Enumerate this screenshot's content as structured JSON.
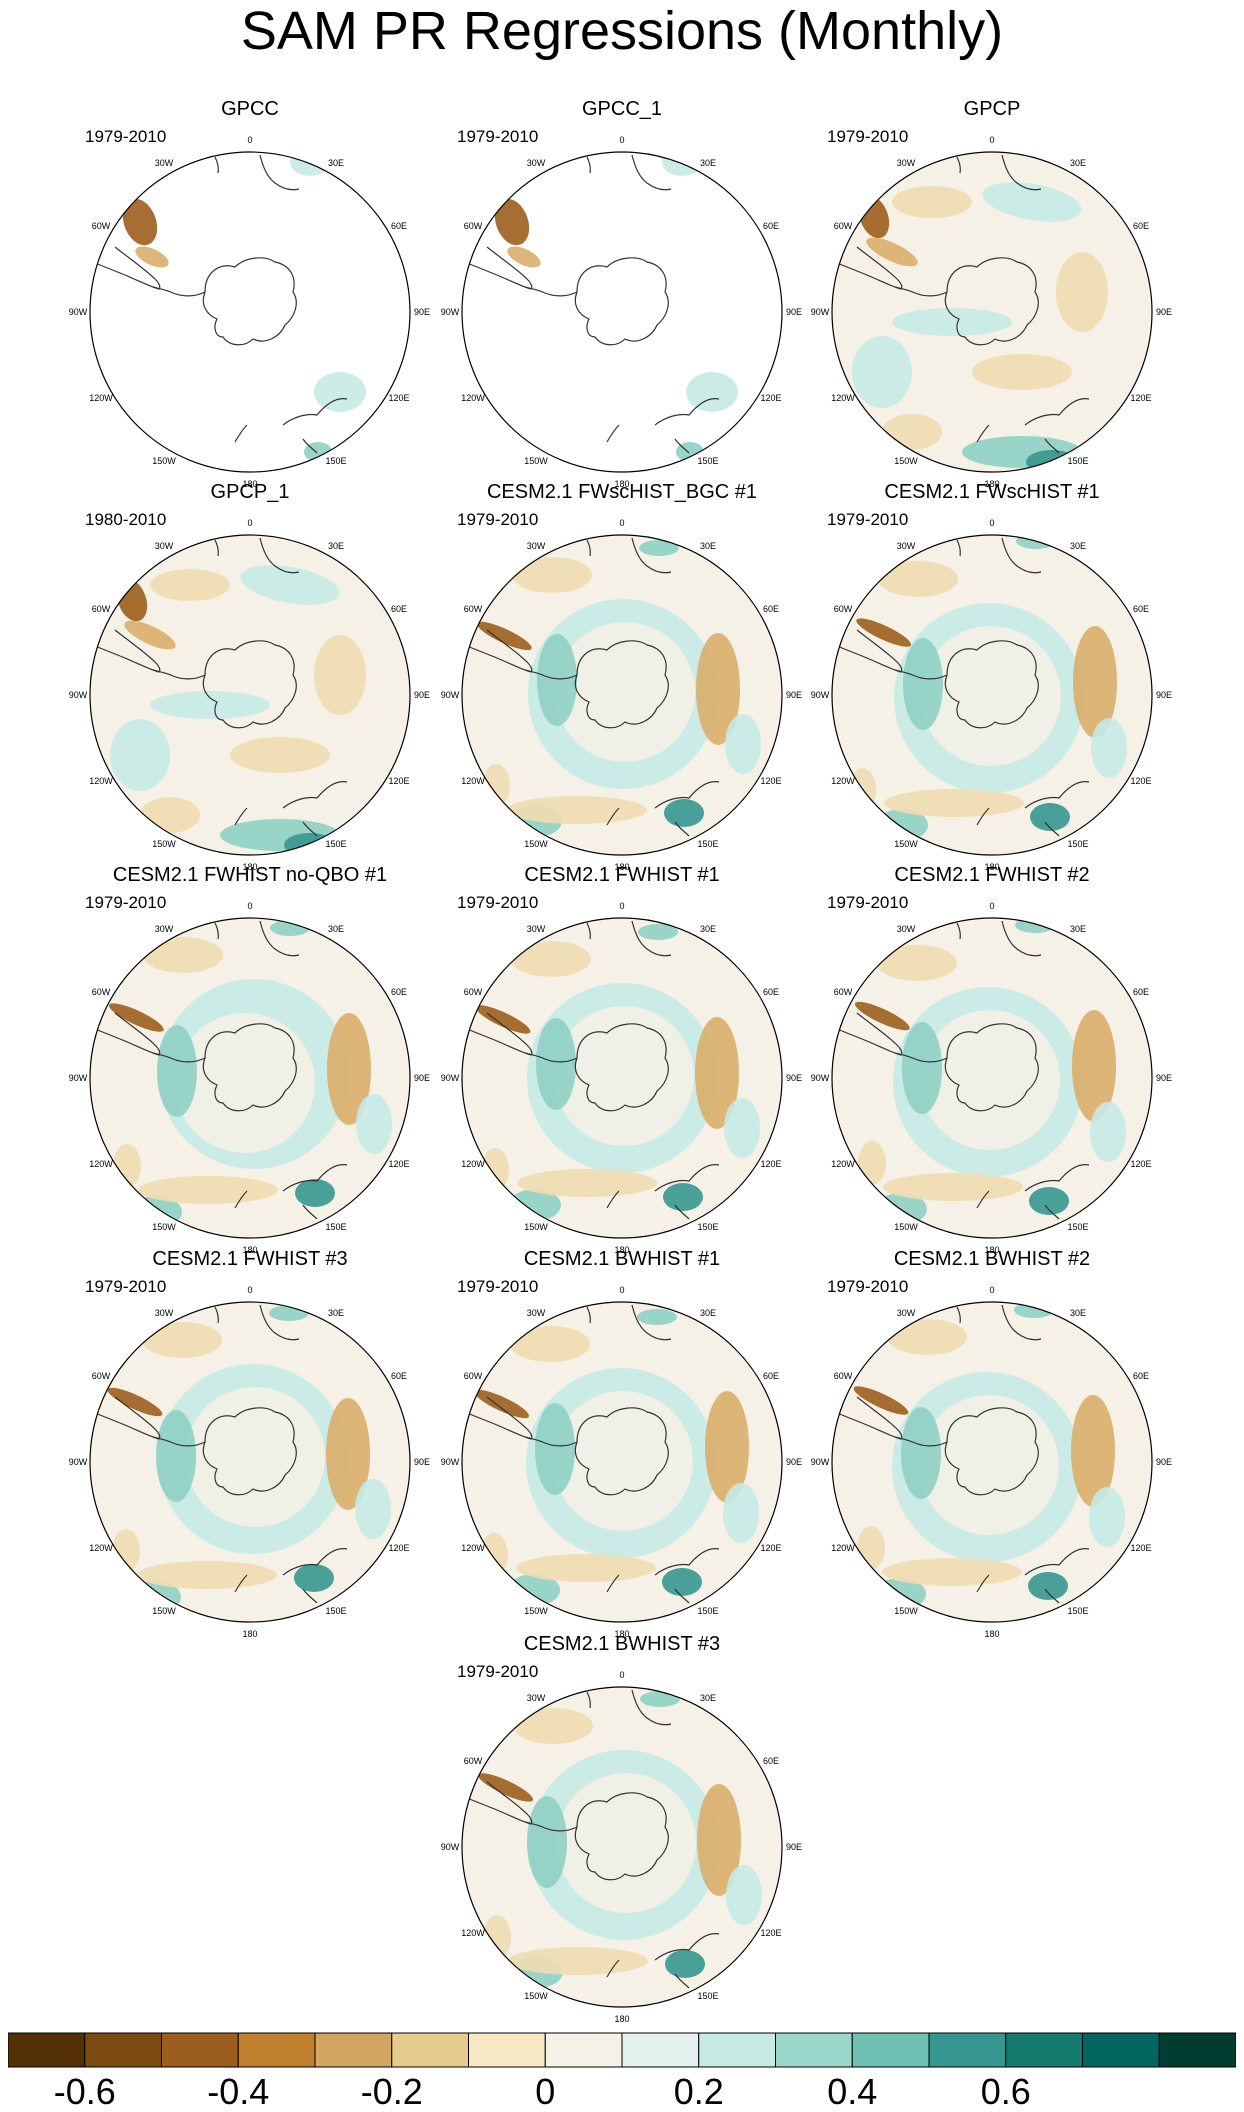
{
  "title": "SAM PR Regressions (Monthly)",
  "longitude_labels": [
    "0",
    "30E",
    "60E",
    "90E",
    "120E",
    "150E",
    "180",
    "150W",
    "120W",
    "90W",
    "60W",
    "30W"
  ],
  "panels": [
    {
      "title": "GPCC",
      "period": "1979-2010",
      "data_coverage": "land-only"
    },
    {
      "title": "GPCC_1",
      "period": "1979-2010",
      "data_coverage": "land-only"
    },
    {
      "title": "GPCP",
      "period": "1979-2010",
      "data_coverage": "global"
    },
    {
      "title": "GPCP_1",
      "period": "1980-2010",
      "data_coverage": "global"
    },
    {
      "title": "CESM2.1 FWscHIST_BGC #1",
      "period": "1979-2010",
      "data_coverage": "global"
    },
    {
      "title": "CESM2.1 FWscHIST #1",
      "period": "1979-2010",
      "data_coverage": "global"
    },
    {
      "title": "CESM2.1 FWHIST no-QBO #1",
      "period": "1979-2010",
      "data_coverage": "global"
    },
    {
      "title": "CESM2.1 FWHIST #1",
      "period": "1979-2010",
      "data_coverage": "global"
    },
    {
      "title": "CESM2.1 FWHIST #2",
      "period": "1979-2010",
      "data_coverage": "global"
    },
    {
      "title": "CESM2.1 FWHIST #3",
      "period": "1979-2010",
      "data_coverage": "global"
    },
    {
      "title": "CESM2.1 BWHIST #1",
      "period": "1979-2010",
      "data_coverage": "global"
    },
    {
      "title": "CESM2.1 BWHIST #2",
      "period": "1979-2010",
      "data_coverage": "global"
    },
    {
      "title": "CESM2.1 BWHIST #3",
      "period": "1979-2010",
      "data_coverage": "global"
    }
  ],
  "colorbar": {
    "colors": [
      "#543005",
      "#7a4a10",
      "#9c5e1c",
      "#bf812d",
      "#d2a660",
      "#e6cb8e",
      "#f6e8c3",
      "#f5f1e6",
      "#e3f1ee",
      "#c7eae5",
      "#9bd6cb",
      "#6fbfb2",
      "#35978f",
      "#157a6e",
      "#01665e",
      "#003c30"
    ],
    "tick_labels": [
      "-0.6",
      "-0.4",
      "-0.2",
      "0",
      "0.2",
      "0.4",
      "0.6"
    ],
    "tick_boundaries": [
      1,
      3,
      5,
      7,
      9,
      11,
      13
    ]
  },
  "map_colors": {
    "ocean_neutral": "#f5f1e6",
    "wet_light": "#c7eae5",
    "wet_mid": "#8fd0c5",
    "wet_strong": "#35978f",
    "dry_light": "#f0ddb0",
    "dry_mid": "#d9ae6a",
    "dry_strong": "#9c5e1c",
    "coast": "#333333",
    "rim": "#000000"
  }
}
